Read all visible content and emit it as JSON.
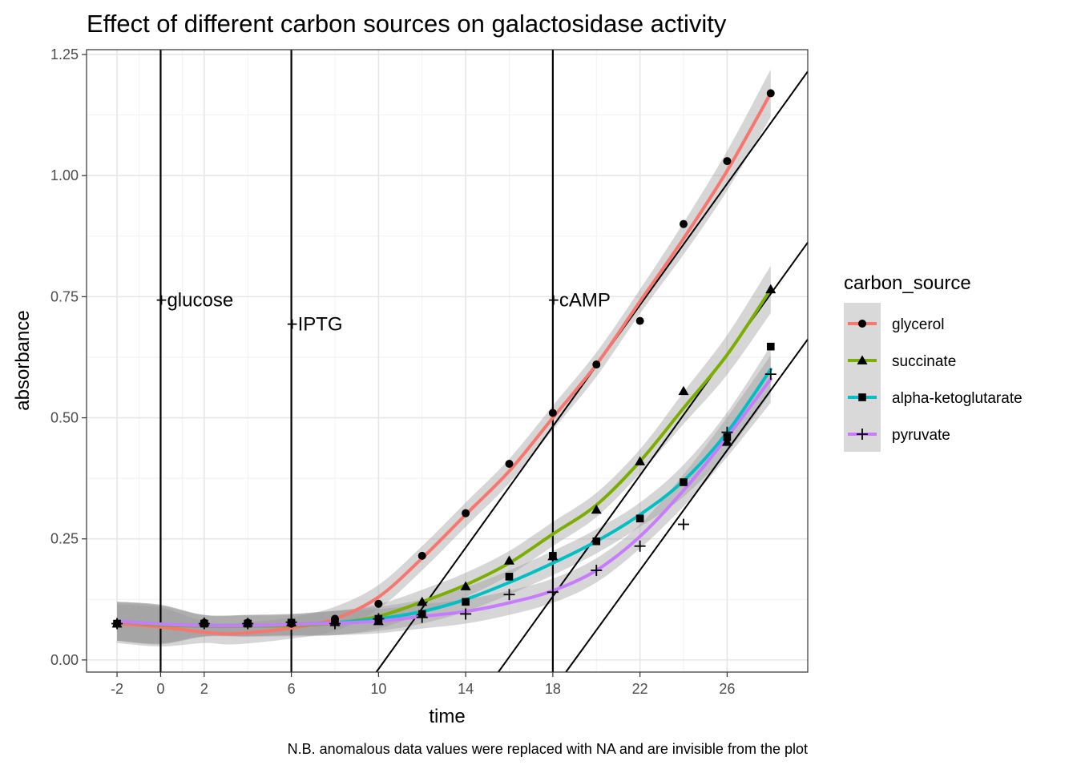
{
  "chart_data": {
    "type": "scatter",
    "title": "Effect of different carbon sources on galactosidase activity",
    "xlabel": "time",
    "ylabel": "absorbance",
    "caption": "N.B. anomalous data values were replaced with NA and are invisible from the plot",
    "xlim": [
      -3.4,
      29.7
    ],
    "ylim": [
      -0.025,
      1.26
    ],
    "x_ticks": [
      -2,
      0,
      2,
      6,
      10,
      14,
      18,
      22,
      26
    ],
    "x_tick_labels": [
      "-2",
      "0",
      "2",
      "6",
      "10",
      "14",
      "18",
      "22",
      "26"
    ],
    "y_ticks": [
      0,
      0.25,
      0.5,
      0.75,
      1.0,
      1.25
    ],
    "y_tick_labels": [
      "0.00",
      "0.25",
      "0.50",
      "0.75",
      "1.00",
      "1.25"
    ],
    "grid": true,
    "legend_title": "carbon_source",
    "legend_position": "right",
    "series": [
      {
        "name": "glycerol",
        "color": "#F8766D",
        "shape": "circle",
        "points": [
          [
            -2,
            0.075
          ],
          [
            2,
            0.077
          ],
          [
            4,
            0.077
          ],
          [
            6,
            0.075
          ],
          [
            8,
            0.085
          ],
          [
            10,
            0.116
          ],
          [
            12,
            0.215
          ],
          [
            14,
            0.303
          ],
          [
            16,
            0.405
          ],
          [
            18,
            0.51
          ],
          [
            20,
            0.61
          ],
          [
            22,
            0.7
          ],
          [
            24,
            0.9
          ],
          [
            26,
            1.03
          ],
          [
            28,
            1.17
          ]
        ],
        "smooth": [
          [
            -2,
            0.075
          ],
          [
            0,
            0.068
          ],
          [
            2,
            0.057
          ],
          [
            3,
            0.054
          ],
          [
            4,
            0.056
          ],
          [
            6,
            0.066
          ],
          [
            8,
            0.085
          ],
          [
            10,
            0.13
          ],
          [
            12,
            0.21
          ],
          [
            14,
            0.3
          ],
          [
            16,
            0.39
          ],
          [
            18,
            0.5
          ],
          [
            20,
            0.61
          ],
          [
            22,
            0.74
          ],
          [
            24,
            0.87
          ],
          [
            26,
            1.01
          ],
          [
            28,
            1.17
          ]
        ]
      },
      {
        "name": "succinate",
        "color": "#7CAE00",
        "shape": "triangle",
        "points": [
          [
            -2,
            0.075
          ],
          [
            2,
            0.078
          ],
          [
            4,
            0.077
          ],
          [
            6,
            0.078
          ],
          [
            8,
            0.078
          ],
          [
            10,
            0.08
          ],
          [
            12,
            0.12
          ],
          [
            14,
            0.152
          ],
          [
            16,
            0.205
          ],
          [
            18,
            0.214
          ],
          [
            20,
            0.31
          ],
          [
            22,
            0.41
          ],
          [
            24,
            0.555
          ],
          [
            26,
            0.45
          ],
          [
            28,
            0.765
          ]
        ],
        "smooth": [
          [
            -2,
            0.08
          ],
          [
            0,
            0.072
          ],
          [
            2,
            0.07
          ],
          [
            4,
            0.07
          ],
          [
            6,
            0.071
          ],
          [
            8,
            0.076
          ],
          [
            10,
            0.09
          ],
          [
            12,
            0.12
          ],
          [
            14,
            0.155
          ],
          [
            16,
            0.2
          ],
          [
            18,
            0.26
          ],
          [
            20,
            0.32
          ],
          [
            22,
            0.41
          ],
          [
            24,
            0.52
          ],
          [
            26,
            0.63
          ],
          [
            28,
            0.765
          ]
        ]
      },
      {
        "name": "alpha-ketoglutarate",
        "color": "#00BFC4",
        "shape": "square",
        "points": [
          [
            -2,
            0.075
          ],
          [
            2,
            0.075
          ],
          [
            4,
            0.075
          ],
          [
            6,
            0.077
          ],
          [
            8,
            0.078
          ],
          [
            10,
            0.085
          ],
          [
            12,
            0.095
          ],
          [
            14,
            0.12
          ],
          [
            16,
            0.172
          ],
          [
            18,
            0.215
          ],
          [
            20,
            0.245
          ],
          [
            22,
            0.292
          ],
          [
            24,
            0.367
          ],
          [
            26,
            0.46
          ],
          [
            28,
            0.647
          ]
        ],
        "smooth": [
          [
            -2,
            0.08
          ],
          [
            0,
            0.074
          ],
          [
            2,
            0.071
          ],
          [
            4,
            0.071
          ],
          [
            6,
            0.073
          ],
          [
            8,
            0.077
          ],
          [
            10,
            0.085
          ],
          [
            12,
            0.1
          ],
          [
            14,
            0.125
          ],
          [
            16,
            0.16
          ],
          [
            18,
            0.2
          ],
          [
            20,
            0.245
          ],
          [
            22,
            0.3
          ],
          [
            24,
            0.37
          ],
          [
            26,
            0.47
          ],
          [
            28,
            0.6
          ]
        ]
      },
      {
        "name": "pyruvate",
        "color": "#C77CFF",
        "shape": "cross",
        "points": [
          [
            -2,
            0.075
          ],
          [
            2,
            0.075
          ],
          [
            4,
            0.075
          ],
          [
            6,
            0.078
          ],
          [
            8,
            0.075
          ],
          [
            10,
            0.085
          ],
          [
            12,
            0.088
          ],
          [
            14,
            0.095
          ],
          [
            16,
            0.135
          ],
          [
            18,
            0.14
          ],
          [
            20,
            0.185
          ],
          [
            22,
            0.235
          ],
          [
            24,
            0.28
          ],
          [
            26,
            0.47
          ],
          [
            28,
            0.59
          ]
        ],
        "smooth": [
          [
            -2,
            0.08
          ],
          [
            0,
            0.074
          ],
          [
            2,
            0.071
          ],
          [
            4,
            0.071
          ],
          [
            6,
            0.073
          ],
          [
            8,
            0.076
          ],
          [
            10,
            0.08
          ],
          [
            12,
            0.09
          ],
          [
            14,
            0.1
          ],
          [
            16,
            0.118
          ],
          [
            18,
            0.143
          ],
          [
            20,
            0.185
          ],
          [
            22,
            0.255
          ],
          [
            24,
            0.35
          ],
          [
            26,
            0.46
          ],
          [
            28,
            0.58
          ]
        ]
      }
    ],
    "vertical_lines": [
      {
        "x": 0,
        "label": "+glucose",
        "label_y": 0.745
      },
      {
        "x": 6,
        "label": "+IPTG",
        "label_y": 0.695
      },
      {
        "x": 18,
        "label": "+cAMP",
        "label_y": 0.745
      }
    ],
    "tangent_lines": [
      {
        "from": [
          9.9,
          -0.025
        ],
        "to": [
          29.7,
          1.215
        ]
      },
      {
        "from": [
          15.5,
          -0.025
        ],
        "to": [
          29.7,
          0.862
        ]
      },
      {
        "from": [
          18.6,
          -0.025
        ],
        "to": [
          29.7,
          0.662
        ]
      }
    ]
  }
}
